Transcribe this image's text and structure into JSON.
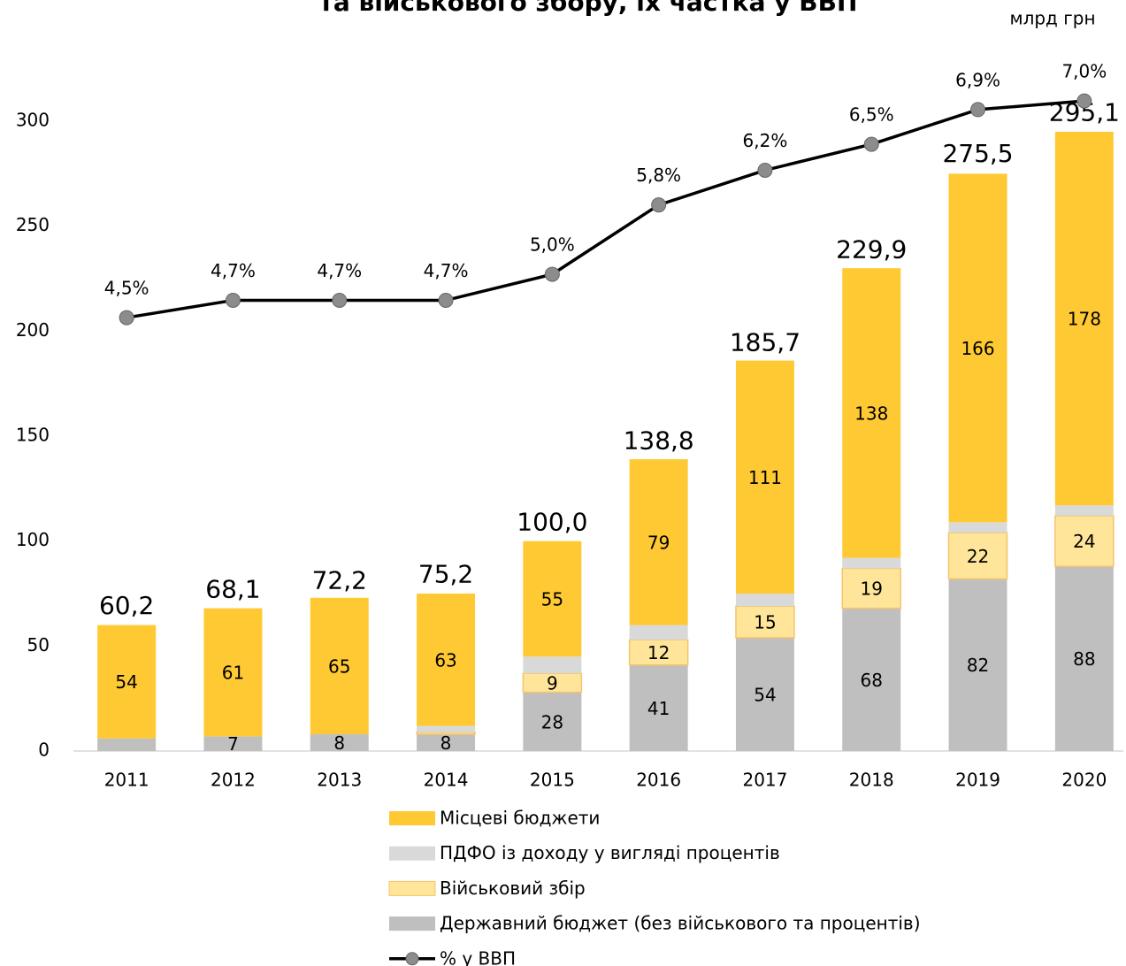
{
  "chart_data": {
    "type": "bar",
    "title": "та військового збору, їх частка у ВВП",
    "unit_label": "млрд грн",
    "categories": [
      "2011",
      "2012",
      "2013",
      "2014",
      "2015",
      "2016",
      "2017",
      "2018",
      "2019",
      "2020"
    ],
    "stacked": true,
    "series": [
      {
        "name": "Державний бюджет (без військового та процентів)",
        "color": "#bfbfbf",
        "values": [
          6,
          7,
          8,
          8,
          28,
          41,
          54,
          68,
          82,
          88
        ]
      },
      {
        "name": "Військовий збір",
        "color": "#ffe599",
        "values": [
          0,
          0,
          0,
          1,
          9,
          12,
          15,
          19,
          22,
          24
        ]
      },
      {
        "name": "ПДФО із доходу у вигляді процентів",
        "color": "#d9d9d9",
        "values": [
          0,
          0,
          0,
          3,
          8,
          7,
          6,
          5,
          5,
          5
        ]
      },
      {
        "name": "Місцеві бюджети",
        "color": "#ffc933",
        "values": [
          54,
          61,
          65,
          63,
          55,
          79,
          111,
          138,
          166,
          178
        ]
      },
      {
        "name": "% у ВВП",
        "type": "line",
        "axis": "y2",
        "color": "#000000",
        "marker_color": "#8c8c8c",
        "values": [
          4.5,
          4.7,
          4.7,
          4.7,
          5.0,
          5.8,
          6.2,
          6.5,
          6.9,
          7.0
        ],
        "value_labels": [
          "4,5%",
          "4,7%",
          "4,7%",
          "4,7%",
          "5,0%",
          "5,8%",
          "6,2%",
          "6,5%",
          "6,9%",
          "7,0%"
        ]
      }
    ],
    "totals": [
      60.2,
      68.1,
      72.2,
      75.2,
      100.0,
      138.8,
      185.7,
      229.9,
      275.5,
      295.1
    ],
    "total_labels": [
      "60,2",
      "68,1",
      "72,2",
      "75,2",
      "100,0",
      "138,8",
      "185,7",
      "229,9",
      "275,5",
      "295,1"
    ],
    "ylim": [
      0,
      320
    ],
    "yticks": [
      0,
      50,
      100,
      150,
      200,
      250,
      300
    ],
    "y2lim": [
      -0.5,
      7.25
    ],
    "legend": "bottom"
  }
}
